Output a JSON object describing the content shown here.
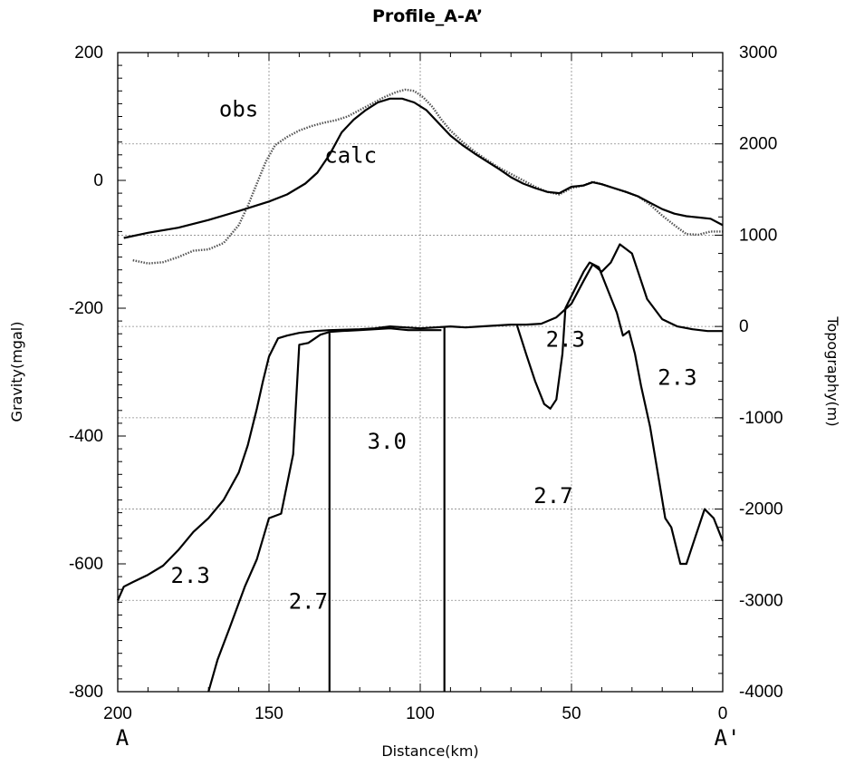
{
  "chart_data": {
    "type": "line",
    "title": "Profile_A-A’",
    "xlabel": "Distance(km)",
    "ylabel_left": "Gravity(mgal)",
    "ylabel_right": "Topography(m)",
    "xlim": [
      200,
      0
    ],
    "ylim_left": [
      -800,
      200
    ],
    "ylim_right": [
      -4000,
      3000
    ],
    "x_ticks": [
      "200",
      "150",
      "100",
      "50",
      "0"
    ],
    "y_left_ticks": [
      "200",
      "0",
      "-200",
      "-400",
      "-600",
      "-800"
    ],
    "y_right_ticks": [
      "3000",
      "2000",
      "1000",
      "0",
      "-1000",
      "-2000",
      "-3000",
      "-4000"
    ],
    "grid": true,
    "end_labels": {
      "left": "A",
      "right": "A'"
    },
    "annotations": [
      {
        "text": "obs",
        "x": 160,
        "y": 100
      },
      {
        "text": "calc",
        "x": 123,
        "y": 28
      },
      {
        "text": "2.3",
        "x": 52,
        "y": -260
      },
      {
        "text": "2.3",
        "x": 15,
        "y": -320
      },
      {
        "text": "3.0",
        "x": 111,
        "y": -420
      },
      {
        "text": "2.7",
        "x": 56,
        "y": -505
      },
      {
        "text": "2.3",
        "x": 176,
        "y": -630
      },
      {
        "text": "2.7",
        "x": 137,
        "y": -670
      }
    ],
    "series": [
      {
        "name": "obs",
        "axis": "left",
        "style": "dotted",
        "points": [
          [
            195,
            -125
          ],
          [
            190,
            -130
          ],
          [
            185,
            -128
          ],
          [
            180,
            -120
          ],
          [
            175,
            -110
          ],
          [
            170,
            -108
          ],
          [
            165,
            -98
          ],
          [
            160,
            -70
          ],
          [
            157,
            -40
          ],
          [
            154,
            -5
          ],
          [
            151,
            30
          ],
          [
            148,
            55
          ],
          [
            144,
            68
          ],
          [
            140,
            78
          ],
          [
            136,
            85
          ],
          [
            132,
            90
          ],
          [
            128,
            94
          ],
          [
            124,
            100
          ],
          [
            120,
            110
          ],
          [
            116,
            120
          ],
          [
            112,
            130
          ],
          [
            108,
            138
          ],
          [
            105,
            142
          ],
          [
            102,
            140
          ],
          [
            99,
            130
          ],
          [
            96,
            115
          ],
          [
            93,
            95
          ],
          [
            90,
            78
          ],
          [
            86,
            60
          ],
          [
            82,
            45
          ],
          [
            78,
            32
          ],
          [
            74,
            20
          ],
          [
            70,
            10
          ],
          [
            66,
            0
          ],
          [
            62,
            -10
          ],
          [
            58,
            -18
          ],
          [
            54,
            -22
          ],
          [
            50,
            -12
          ],
          [
            46,
            -8
          ],
          [
            43,
            -2
          ],
          [
            40,
            -6
          ],
          [
            36,
            -12
          ],
          [
            32,
            -18
          ],
          [
            28,
            -25
          ],
          [
            24,
            -38
          ],
          [
            20,
            -55
          ],
          [
            16,
            -70
          ],
          [
            12,
            -84
          ],
          [
            8,
            -85
          ],
          [
            4,
            -80
          ],
          [
            0,
            -80
          ]
        ]
      },
      {
        "name": "calc",
        "axis": "left",
        "style": "solid",
        "points": [
          [
            198,
            -90
          ],
          [
            190,
            -82
          ],
          [
            180,
            -74
          ],
          [
            170,
            -62
          ],
          [
            160,
            -48
          ],
          [
            150,
            -33
          ],
          [
            144,
            -22
          ],
          [
            138,
            -5
          ],
          [
            134,
            12
          ],
          [
            130,
            40
          ],
          [
            126,
            75
          ],
          [
            122,
            95
          ],
          [
            118,
            110
          ],
          [
            114,
            122
          ],
          [
            110,
            128
          ],
          [
            106,
            128
          ],
          [
            102,
            122
          ],
          [
            98,
            110
          ],
          [
            94,
            90
          ],
          [
            90,
            70
          ],
          [
            86,
            55
          ],
          [
            82,
            42
          ],
          [
            78,
            30
          ],
          [
            74,
            18
          ],
          [
            70,
            5
          ],
          [
            66,
            -5
          ],
          [
            62,
            -12
          ],
          [
            58,
            -18
          ],
          [
            54,
            -20
          ],
          [
            50,
            -10
          ],
          [
            46,
            -8
          ],
          [
            43,
            -3
          ],
          [
            40,
            -6
          ],
          [
            36,
            -12
          ],
          [
            32,
            -18
          ],
          [
            28,
            -25
          ],
          [
            24,
            -35
          ],
          [
            20,
            -45
          ],
          [
            16,
            -52
          ],
          [
            12,
            -56
          ],
          [
            8,
            -58
          ],
          [
            4,
            -60
          ],
          [
            0,
            -70
          ]
        ]
      },
      {
        "name": "topography",
        "axis": "right",
        "style": "solid",
        "points": [
          [
            200,
            -3000
          ],
          [
            198,
            -2850
          ],
          [
            195,
            -2800
          ],
          [
            190,
            -2720
          ],
          [
            185,
            -2620
          ],
          [
            180,
            -2450
          ],
          [
            175,
            -2250
          ],
          [
            170,
            -2100
          ],
          [
            165,
            -1900
          ],
          [
            160,
            -1600
          ],
          [
            157,
            -1300
          ],
          [
            154,
            -900
          ],
          [
            152,
            -600
          ],
          [
            150,
            -330
          ],
          [
            147,
            -130
          ],
          [
            144,
            -100
          ],
          [
            140,
            -70
          ],
          [
            135,
            -50
          ],
          [
            130,
            -40
          ],
          [
            125,
            -35
          ],
          [
            120,
            -30
          ],
          [
            115,
            -20
          ],
          [
            110,
            0
          ],
          [
            105,
            -10
          ],
          [
            100,
            -20
          ],
          [
            95,
            -10
          ],
          [
            90,
            0
          ],
          [
            85,
            -10
          ],
          [
            80,
            0
          ],
          [
            75,
            10
          ],
          [
            70,
            20
          ],
          [
            65,
            20
          ],
          [
            60,
            30
          ],
          [
            55,
            100
          ],
          [
            50,
            250
          ],
          [
            46,
            500
          ],
          [
            43,
            680
          ],
          [
            40,
            600
          ],
          [
            37,
            700
          ],
          [
            34,
            900
          ],
          [
            30,
            800
          ],
          [
            28,
            600
          ],
          [
            25,
            300
          ],
          [
            20,
            80
          ],
          [
            15,
            0
          ],
          [
            10,
            -30
          ],
          [
            5,
            -50
          ],
          [
            0,
            -50
          ]
        ]
      },
      {
        "name": "body_boundary_2.7",
        "axis": "right",
        "style": "solid",
        "points": [
          [
            170,
            -4000
          ],
          [
            167,
            -3650
          ],
          [
            163,
            -3300
          ],
          [
            158,
            -2850
          ],
          [
            154,
            -2550
          ],
          [
            150,
            -2100
          ],
          [
            146,
            -2050
          ],
          [
            142,
            -1400
          ],
          [
            140,
            -200
          ],
          [
            137,
            -180
          ],
          [
            133,
            -90
          ],
          [
            131,
            -70
          ],
          [
            130,
            -60
          ],
          [
            126,
            -50
          ],
          [
            120,
            -40
          ],
          [
            110,
            -20
          ],
          [
            104,
            -40
          ],
          [
            100,
            -40
          ],
          [
            93,
            -40
          ]
        ]
      },
      {
        "name": "body_boundary_3.0_left",
        "axis": "right",
        "style": "solid",
        "points": [
          [
            130,
            -4000
          ],
          [
            130,
            -70
          ]
        ]
      },
      {
        "name": "body_boundary_3.0_right",
        "axis": "right",
        "style": "solid",
        "points": [
          [
            92,
            -4000
          ],
          [
            92,
            -10
          ]
        ]
      },
      {
        "name": "body_boundary_2.3_right",
        "axis": "right",
        "style": "solid",
        "points": [
          [
            68,
            10
          ],
          [
            65,
            -300
          ],
          [
            62,
            -600
          ],
          [
            59,
            -850
          ],
          [
            57,
            -900
          ],
          [
            55,
            -800
          ],
          [
            53,
            -300
          ],
          [
            52,
            200
          ],
          [
            49,
            400
          ],
          [
            46,
            600
          ],
          [
            44,
            700
          ],
          [
            41,
            650
          ],
          [
            38,
            400
          ],
          [
            35,
            150
          ],
          [
            33,
            -100
          ],
          [
            31,
            -50
          ],
          [
            29,
            -300
          ],
          [
            27,
            -650
          ],
          [
            24,
            -1100
          ],
          [
            21,
            -1700
          ],
          [
            19,
            -2100
          ],
          [
            17,
            -2200
          ],
          [
            14,
            -2600
          ],
          [
            12,
            -2600
          ],
          [
            9,
            -2300
          ],
          [
            6,
            -2000
          ],
          [
            3,
            -2100
          ],
          [
            0,
            -2350
          ]
        ]
      }
    ]
  }
}
